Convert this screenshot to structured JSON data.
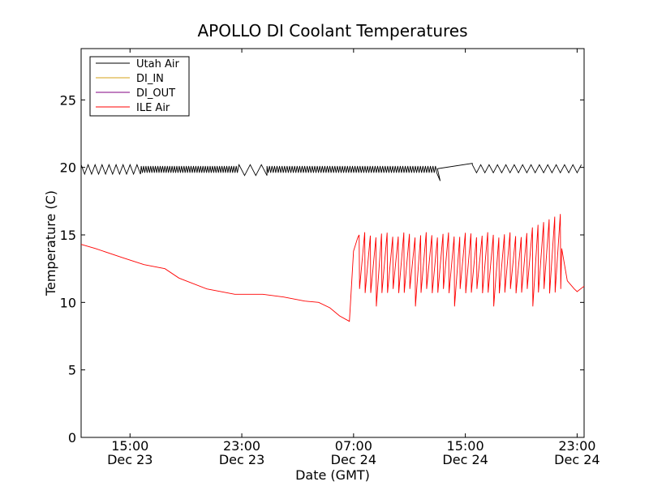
{
  "chart_data": {
    "type": "line",
    "title": "APOLLO DI Coolant Temperatures",
    "xlabel": "Date (GMT)",
    "ylabel": "Temperature (C)",
    "x_unit": "hours since Dec 23 00:00 GMT",
    "xlim": [
      11.5,
      47.5
    ],
    "ylim": [
      0,
      28.8
    ],
    "y_ticks": [
      0,
      5,
      10,
      15,
      20,
      25
    ],
    "x_ticks": [
      {
        "x": 15,
        "time": "15:00",
        "date": "Dec 23"
      },
      {
        "x": 23,
        "time": "23:00",
        "date": "Dec 23"
      },
      {
        "x": 31,
        "time": "07:00",
        "date": "Dec 24"
      },
      {
        "x": 39,
        "time": "15:00",
        "date": "Dec 24"
      },
      {
        "x": 47,
        "time": "23:00",
        "date": "Dec 24"
      }
    ],
    "grid": false,
    "legend_position": "top-left",
    "series": [
      {
        "name": "Utah Air",
        "color": "#000000",
        "generator": "sawtooth",
        "segments": [
          {
            "x0": 11.5,
            "x1": 15.8,
            "period": 0.5,
            "lo": 19.5,
            "hi": 20.2
          },
          {
            "x0": 15.8,
            "x1": 22.8,
            "period": 0.17,
            "lo": 19.6,
            "hi": 20.1
          },
          {
            "x0": 22.8,
            "x1": 24.8,
            "period": 0.8,
            "lo": 19.4,
            "hi": 20.2
          },
          {
            "x0": 24.8,
            "x1": 37.0,
            "period": 0.18,
            "lo": 19.6,
            "hi": 20.1
          },
          {
            "x0": 37.2,
            "x1": 39.5,
            "ramp": [
              19.0,
              20.3
            ]
          },
          {
            "x0": 39.5,
            "x1": 47.5,
            "period": 0.6,
            "lo": 19.6,
            "hi": 20.2
          }
        ]
      },
      {
        "name": "DI_IN",
        "color": "#d4a017",
        "points": []
      },
      {
        "name": "DI_OUT",
        "color": "#800080",
        "points": []
      },
      {
        "name": "ILE Air",
        "color": "#ff0000",
        "generator": "smooth-then-spikes",
        "smooth": [
          [
            11.5,
            14.3
          ],
          [
            12.5,
            14.0
          ],
          [
            14.5,
            13.3
          ],
          [
            16.0,
            12.8
          ],
          [
            17.5,
            12.5
          ],
          [
            18.5,
            11.8
          ],
          [
            20.5,
            11.0
          ],
          [
            22.5,
            10.6
          ],
          [
            24.5,
            10.6
          ],
          [
            26.0,
            10.4
          ],
          [
            27.5,
            10.1
          ],
          [
            28.5,
            10.0
          ],
          [
            29.3,
            9.6
          ],
          [
            30.0,
            9.0
          ],
          [
            30.7,
            8.6
          ]
        ],
        "spike_start": 30.7,
        "spike_end": 45.9,
        "spike_period": 0.4,
        "spike_peak": 15.0,
        "spike_base": 10.8,
        "recovery": [
          [
            45.9,
            14.0
          ],
          [
            46.3,
            11.6
          ],
          [
            46.8,
            11.0
          ],
          [
            47.0,
            10.8
          ],
          [
            47.5,
            11.2
          ]
        ]
      }
    ]
  }
}
